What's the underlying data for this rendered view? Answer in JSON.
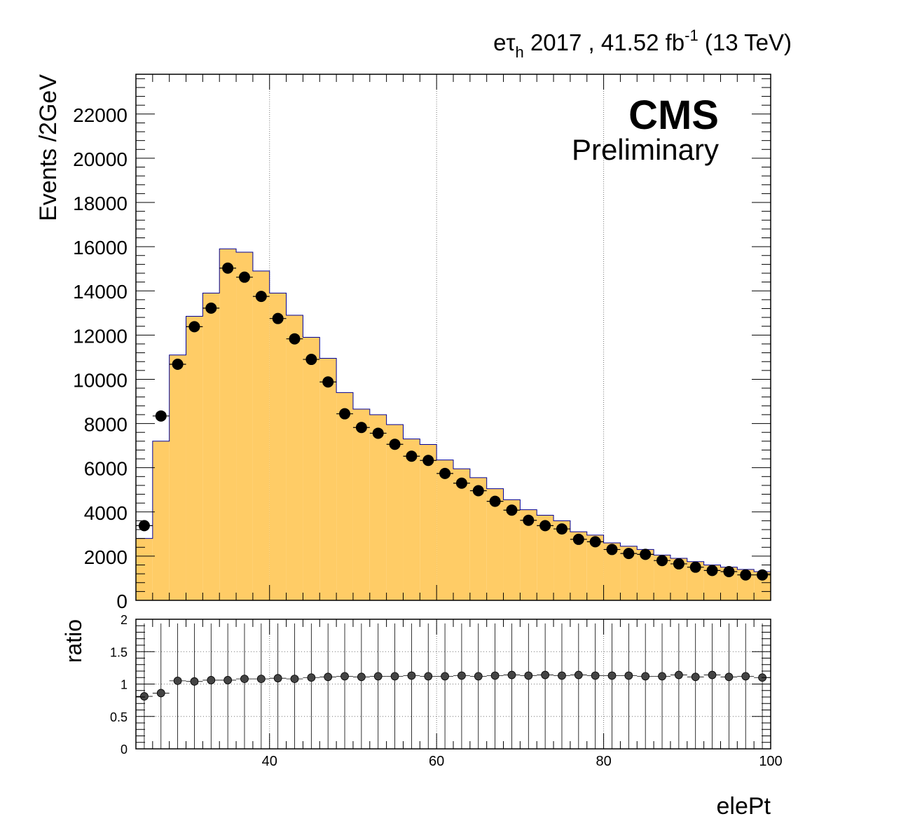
{
  "header": {
    "channel_e": "e",
    "channel_tau": "τ",
    "channel_sub": "h",
    "year_lumi": " 2017 , 41.52 fb",
    "lumi_exp": "-1",
    "energy": " (13 TeV)"
  },
  "cms_label": "CMS",
  "preliminary_label": "Preliminary",
  "colors": {
    "mc_fill": "#ffcc66",
    "mc_line": "#000099",
    "data": "#000000"
  },
  "chart_data": [
    {
      "type": "bar",
      "panel": "main",
      "xlabel": "",
      "ylabel": "Events /2GeV",
      "xlim": [
        24,
        100
      ],
      "ylim": [
        0,
        23800
      ],
      "y_ticks": [
        0,
        2000,
        4000,
        6000,
        8000,
        10000,
        12000,
        14000,
        16000,
        18000,
        20000,
        22000
      ],
      "y_tick_labels": [
        "0",
        "2000",
        "4000",
        "6000",
        "8000",
        "10000",
        "12000",
        "14000",
        "16000",
        "18000",
        "20000",
        "22000"
      ],
      "grid_x": [
        40,
        60,
        80
      ],
      "bin_edges": [
        24,
        26,
        28,
        30,
        32,
        34,
        36,
        38,
        40,
        42,
        44,
        46,
        48,
        50,
        52,
        54,
        56,
        58,
        60,
        62,
        64,
        66,
        68,
        70,
        72,
        74,
        76,
        78,
        80,
        82,
        84,
        86,
        88,
        90,
        92,
        94,
        96,
        98,
        100
      ],
      "series": [
        {
          "kind": "histogram",
          "values": [
            2800,
            7200,
            11100,
            12850,
            13900,
            15900,
            15750,
            14900,
            13900,
            12900,
            11900,
            10950,
            9400,
            8650,
            8400,
            7950,
            7300,
            7050,
            6350,
            5950,
            5550,
            5050,
            4550,
            4100,
            3850,
            3600,
            3100,
            2950,
            2600,
            2450,
            2300,
            2050,
            1900,
            1750,
            1600,
            1500,
            1400,
            1300
          ]
        },
        {
          "kind": "data_points",
          "x": [
            25,
            27,
            29,
            31,
            33,
            35,
            37,
            39,
            41,
            43,
            45,
            47,
            49,
            51,
            53,
            55,
            57,
            59,
            61,
            63,
            65,
            67,
            69,
            71,
            73,
            75,
            77,
            79,
            81,
            83,
            85,
            87,
            89,
            91,
            93,
            95,
            97,
            99
          ],
          "values": [
            3380,
            8340,
            10680,
            12380,
            13220,
            15030,
            14620,
            13750,
            12750,
            11830,
            10900,
            9880,
            8440,
            7820,
            7560,
            7060,
            6520,
            6330,
            5740,
            5300,
            4960,
            4480,
            4080,
            3620,
            3380,
            3230,
            2760,
            2650,
            2300,
            2120,
            2080,
            1800,
            1650,
            1500,
            1350,
            1300,
            1150,
            1150
          ]
        }
      ]
    },
    {
      "type": "scatter",
      "panel": "ratio",
      "xlabel": "elePt",
      "ylabel": "ratio",
      "xlim": [
        24,
        100
      ],
      "ylim": [
        0,
        2
      ],
      "x_ticks": [
        40,
        60,
        80,
        100
      ],
      "x_tick_labels": [
        "40",
        "60",
        "80",
        "100"
      ],
      "y_ticks": [
        0,
        0.5,
        1,
        1.5,
        2
      ],
      "y_tick_labels": [
        "0",
        "0.5",
        "1",
        "1.5",
        "2"
      ],
      "x": [
        25,
        27,
        29,
        31,
        33,
        35,
        37,
        39,
        41,
        43,
        45,
        47,
        49,
        51,
        53,
        55,
        57,
        59,
        61,
        63,
        65,
        67,
        69,
        71,
        73,
        75,
        77,
        79,
        81,
        83,
        85,
        87,
        89,
        91,
        93,
        95,
        97,
        99
      ],
      "values": [
        0.81,
        0.86,
        1.05,
        1.04,
        1.06,
        1.06,
        1.08,
        1.08,
        1.09,
        1.08,
        1.1,
        1.11,
        1.12,
        1.11,
        1.12,
        1.12,
        1.13,
        1.12,
        1.12,
        1.13,
        1.12,
        1.13,
        1.14,
        1.13,
        1.14,
        1.13,
        1.14,
        1.13,
        1.13,
        1.13,
        1.12,
        1.12,
        1.14,
        1.11,
        1.14,
        1.11,
        1.12,
        1.1
      ]
    }
  ]
}
